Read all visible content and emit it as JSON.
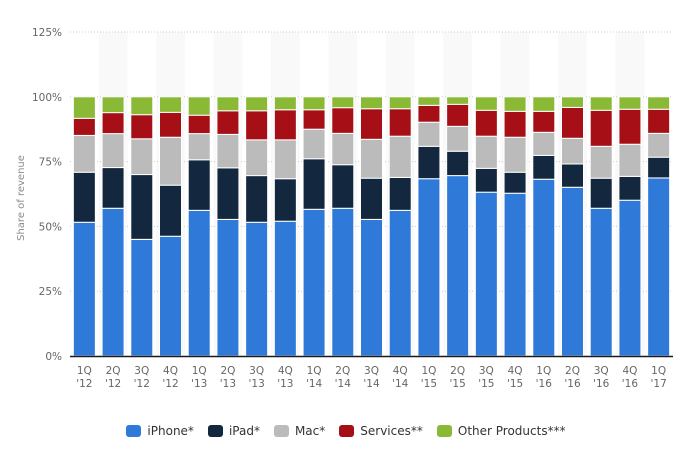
{
  "chart_data": {
    "type": "bar",
    "stacked": true,
    "title": "",
    "xlabel": "",
    "ylabel": "Share of revenue",
    "ylim": [
      0,
      125
    ],
    "yticks": [
      "0%",
      "25%",
      "50%",
      "75%",
      "100%",
      "125%"
    ],
    "ytick_values": [
      0,
      25,
      50,
      75,
      100,
      125
    ],
    "grid": true,
    "legend_position": "bottom",
    "categories": [
      [
        "1Q",
        "'12"
      ],
      [
        "2Q",
        "'12"
      ],
      [
        "3Q",
        "'12"
      ],
      [
        "4Q",
        "'12"
      ],
      [
        "1Q",
        "'13"
      ],
      [
        "2Q",
        "'13"
      ],
      [
        "3Q",
        "'13"
      ],
      [
        "4Q",
        "'13"
      ],
      [
        "1Q",
        "'14"
      ],
      [
        "2Q",
        "'14"
      ],
      [
        "3Q",
        "'14"
      ],
      [
        "4Q",
        "'14"
      ],
      [
        "1Q",
        "'15"
      ],
      [
        "2Q",
        "'15"
      ],
      [
        "3Q",
        "'15"
      ],
      [
        "4Q",
        "'15"
      ],
      [
        "1Q",
        "'16"
      ],
      [
        "2Q",
        "'16"
      ],
      [
        "3Q",
        "'16"
      ],
      [
        "4Q",
        "'16"
      ],
      [
        "1Q",
        "'17"
      ]
    ],
    "series": [
      {
        "name": "iPhone*",
        "color": "#2f7ad9",
        "values": [
          51.6,
          57.0,
          45.0,
          46.2,
          56.2,
          52.7,
          51.6,
          52.0,
          56.6,
          57.0,
          52.7,
          56.2,
          68.4,
          69.6,
          63.2,
          62.8,
          68.2,
          65.1,
          57.0,
          60.1,
          68.7
        ]
      },
      {
        "name": "iPad*",
        "color": "#13283e",
        "values": [
          19.3,
          15.7,
          25.0,
          19.7,
          19.5,
          19.9,
          18.0,
          16.4,
          19.5,
          16.8,
          15.9,
          12.7,
          12.5,
          9.4,
          9.2,
          8.1,
          9.2,
          9.0,
          11.6,
          9.2,
          8.0
        ]
      },
      {
        "name": "Mac*",
        "color": "#bbbbbb",
        "values": [
          14.2,
          13.1,
          13.8,
          18.5,
          10.1,
          12.9,
          13.8,
          15.0,
          11.4,
          12.1,
          15.0,
          15.9,
          9.3,
          9.6,
          12.4,
          13.5,
          8.9,
          9.9,
          12.3,
          12.4,
          9.2
        ]
      },
      {
        "name": "Services**",
        "color": "#a50f15",
        "values": [
          6.6,
          8.1,
          9.3,
          9.6,
          7.1,
          9.1,
          11.2,
          11.6,
          7.5,
          9.9,
          11.8,
          10.6,
          6.5,
          8.5,
          10.0,
          10.0,
          8.1,
          11.9,
          13.9,
          13.5,
          9.3
        ]
      },
      {
        "name": "Other Products***",
        "color": "#8aba35",
        "values": [
          8.3,
          6.1,
          6.9,
          6.0,
          7.1,
          5.4,
          5.4,
          5.0,
          5.0,
          4.2,
          4.6,
          4.6,
          3.3,
          2.9,
          5.2,
          5.6,
          5.6,
          4.1,
          5.2,
          4.8,
          4.8
        ]
      }
    ]
  }
}
